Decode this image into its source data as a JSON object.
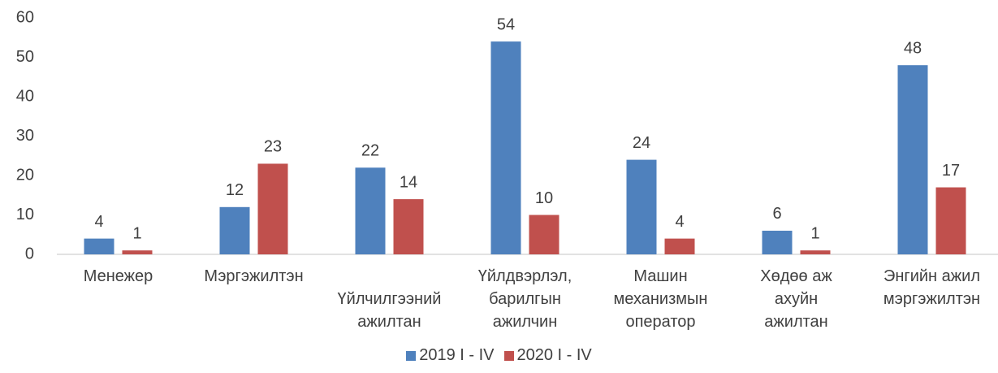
{
  "chart_data": {
    "type": "bar",
    "categories": [
      "Менежер",
      "Мэргэжилтэн",
      "Үйлчилгээний\nажилтан",
      "Үйлдвэрлэл,\nбарилгын\nажилчин",
      "Машин\nмеханизмын\nоператор",
      "Хөдөө аж\nахуйн\nажилтан",
      "Энгийн ажил\nмэргэжилтэн"
    ],
    "series": [
      {
        "name": "2019 I - IV",
        "color": "#4f81bd",
        "values": [
          4,
          12,
          22,
          54,
          24,
          6,
          48
        ]
      },
      {
        "name": "2020 I - IV",
        "color": "#c0504d",
        "values": [
          1,
          23,
          14,
          10,
          4,
          1,
          17
        ]
      }
    ],
    "ylim": [
      0,
      60
    ],
    "yticks": [
      0,
      10,
      20,
      30,
      40,
      50,
      60
    ],
    "grid": false,
    "legend": "bottom"
  }
}
